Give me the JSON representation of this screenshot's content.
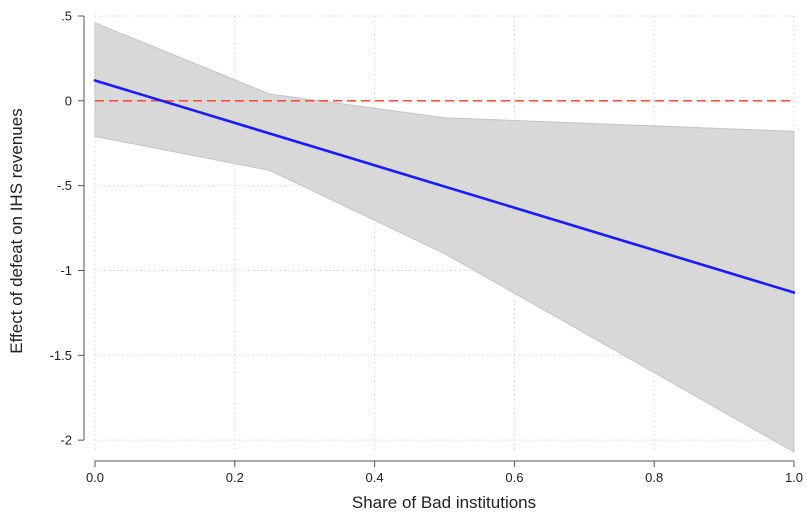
{
  "chart_data": {
    "type": "line",
    "xlabel": "Share of Bad institutions",
    "ylabel": "Effect of defeat on IHS revenues",
    "xlim": [
      0,
      1
    ],
    "ylim": [
      -2.07,
      0.5
    ],
    "x_ticks": [
      0,
      0.2,
      0.4,
      0.6,
      0.8,
      1
    ],
    "x_tick_labels": [
      "0.0",
      "0.2",
      "0.4",
      "0.6",
      "0.8",
      "1.0"
    ],
    "y_ticks": [
      0.5,
      0,
      -0.5,
      -1,
      -1.5,
      -2
    ],
    "y_tick_labels": [
      ".5",
      "0",
      "-.5",
      "-1",
      "-1.5",
      "-2"
    ],
    "grid": true,
    "series": [
      {
        "x": [
          0,
          1
        ],
        "y": [
          0.12,
          -1.13
        ],
        "style": "solid",
        "color": "#1a1aff"
      }
    ],
    "confidence_band": {
      "x": [
        0,
        0.25,
        0.5,
        1
      ],
      "upper": [
        0.46,
        0.04,
        -0.1,
        -0.18
      ],
      "lower": [
        -0.21,
        -0.41,
        -0.9,
        -2.07
      ],
      "color": "#d8d8d8"
    },
    "reference_line": {
      "y": 0,
      "style": "dashed",
      "color": "#e8402a"
    }
  }
}
